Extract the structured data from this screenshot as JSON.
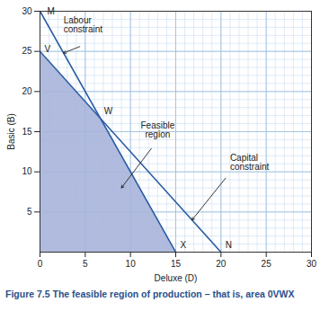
{
  "chart_data": {
    "type": "line",
    "caption": "Figure 7.5 The feasible region of production – that is, area 0VWX",
    "x_label": "Deluxe (D)",
    "y_label": "Basic (B)",
    "xlim": [
      0,
      30
    ],
    "ylim": [
      0,
      30
    ],
    "xticks": [
      0,
      5,
      10,
      15,
      20,
      25,
      30
    ],
    "yticks": [
      5,
      10,
      15,
      20,
      25,
      30
    ],
    "grid": true,
    "series": [
      {
        "name": "Labour constraint",
        "color": "#2a5ca3",
        "x": [
          0,
          15
        ],
        "values": [
          30,
          0
        ]
      },
      {
        "name": "Capital constraint",
        "color": "#2a5ca3",
        "x": [
          0,
          20
        ],
        "values": [
          25,
          0
        ]
      }
    ],
    "feasible_region": {
      "name": "Feasible region",
      "color": "#a7b4da",
      "x": [
        0,
        0,
        6.67,
        15
      ],
      "values": [
        0,
        25,
        16.67,
        0
      ]
    },
    "points": [
      {
        "label": "M",
        "x": 0,
        "y": 30
      },
      {
        "label": "V",
        "x": 0,
        "y": 25
      },
      {
        "label": "W",
        "x": 6.67,
        "y": 16.67
      },
      {
        "label": "X",
        "x": 15,
        "y": 0
      },
      {
        "label": "N",
        "x": 20,
        "y": 0
      }
    ]
  }
}
